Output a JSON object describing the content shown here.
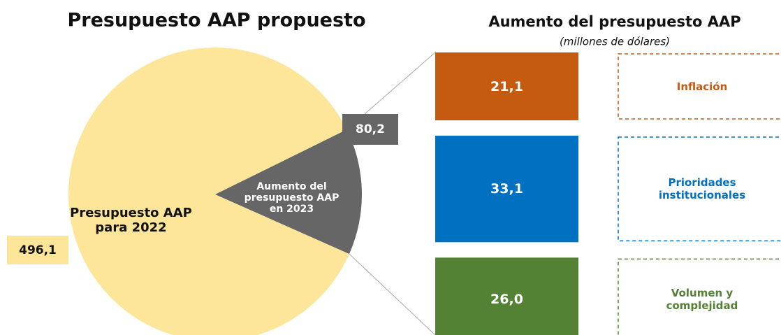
{
  "chart_data": [
    {
      "type": "pie",
      "title": "Presupuesto AAP propuesto",
      "labels": [
        "Presupuesto AAP para 2022",
        "Aumento del presupuesto AAP en 2023"
      ],
      "values": [
        496.1,
        80.2
      ],
      "value_labels": [
        "496,1",
        "80,2"
      ],
      "colors": [
        "#fde699",
        "#666666"
      ]
    },
    {
      "type": "stacked-bar",
      "title": "Aumento del presupuesto AAP",
      "subtitle": "(millones de dólares)",
      "categories": [
        "Inflación",
        "Prioridades institucionales",
        "Volumen y complejidad"
      ],
      "values": [
        21.1,
        33.1,
        26.0
      ],
      "value_labels": [
        "21,1",
        "33,1",
        "26,0"
      ],
      "colors": [
        "#c55a11",
        "#0070c0",
        "#548235"
      ]
    }
  ]
}
